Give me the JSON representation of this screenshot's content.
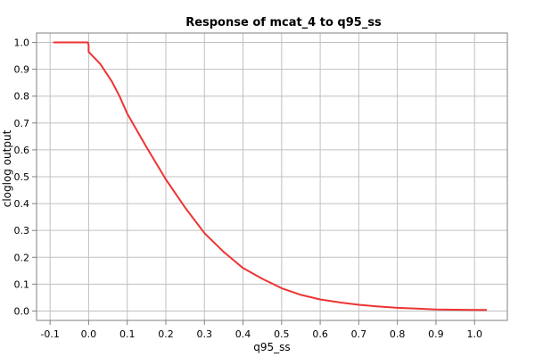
{
  "chart_data": {
    "type": "line",
    "title": "Response of mcat_4 to q95_ss",
    "xlabel": "q95_ss",
    "ylabel": "cloglog output",
    "xlim": [
      -0.135,
      1.085
    ],
    "ylim": [
      -0.035,
      1.035
    ],
    "xticks": [
      -0.1,
      0.0,
      0.1,
      0.2,
      0.3,
      0.4,
      0.5,
      0.6,
      0.7,
      0.8,
      0.9,
      1.0
    ],
    "xtick_labels": [
      "-0.1",
      "0.0",
      "0.1",
      "0.2",
      "0.3",
      "0.4",
      "0.5",
      "0.6",
      "0.7",
      "0.8",
      "0.9",
      "1.0"
    ],
    "yticks": [
      0.0,
      0.1,
      0.2,
      0.3,
      0.4,
      0.5,
      0.6,
      0.7,
      0.8,
      0.9,
      1.0
    ],
    "ytick_labels": [
      "0.0",
      "0.1",
      "0.2",
      "0.3",
      "0.4",
      "0.5",
      "0.6",
      "0.7",
      "0.8",
      "0.9",
      "1.0"
    ],
    "grid": true,
    "legend": "none",
    "series": [
      {
        "color": "#ee3333",
        "x": [
          -0.09,
          -0.002,
          0.0,
          0.0,
          0.03,
          0.06,
          0.08,
          0.1,
          0.15,
          0.2,
          0.25,
          0.3,
          0.35,
          0.4,
          0.45,
          0.5,
          0.55,
          0.6,
          0.65,
          0.7,
          0.75,
          0.8,
          0.85,
          0.9,
          0.95,
          1.0,
          1.03
        ],
        "y": [
          1.0,
          1.0,
          0.99,
          0.965,
          0.92,
          0.855,
          0.8,
          0.735,
          0.61,
          0.49,
          0.385,
          0.29,
          0.22,
          0.16,
          0.12,
          0.085,
          0.06,
          0.043,
          0.032,
          0.023,
          0.017,
          0.012,
          0.009,
          0.006,
          0.005,
          0.004,
          0.004
        ]
      }
    ]
  }
}
